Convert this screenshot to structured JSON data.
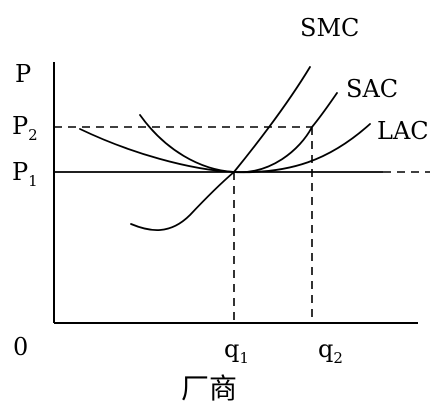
{
  "diagram": {
    "title": "厂商",
    "axis": {
      "y_label": "P",
      "origin_label": "0"
    },
    "price_levels": [
      {
        "name": "P",
        "subscript": "2"
      },
      {
        "name": "P",
        "subscript": "1"
      }
    ],
    "quantity_levels": [
      {
        "name": "q",
        "subscript": "1"
      },
      {
        "name": "q",
        "subscript": "2"
      }
    ],
    "curves": [
      {
        "label": "SMC"
      },
      {
        "label": "SAC"
      },
      {
        "label": "LAC"
      }
    ]
  }
}
